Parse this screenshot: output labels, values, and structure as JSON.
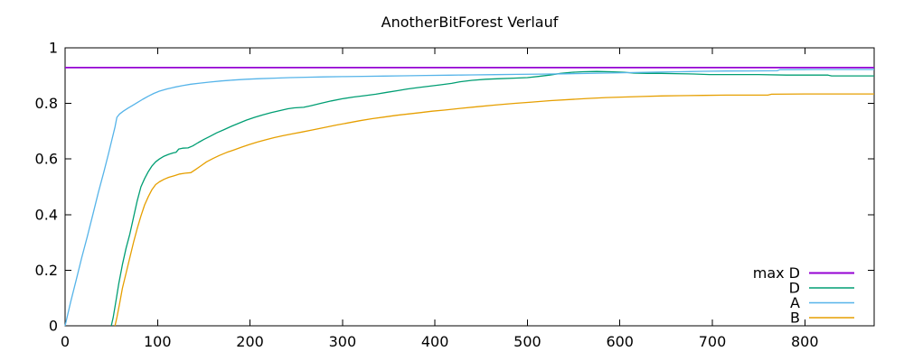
{
  "chart_data": {
    "type": "line",
    "title": "AnotherBitForest Verlauf",
    "xlabel": "",
    "ylabel": "",
    "xlim": [
      0,
      875
    ],
    "ylim": [
      0,
      1
    ],
    "grid": false,
    "background": "#ffffff",
    "axis_color": "#000000",
    "legend_position": "bottom-right-inside",
    "x_ticks": [
      {
        "value": 0,
        "label": "0"
      },
      {
        "value": 100,
        "label": "100"
      },
      {
        "value": 200,
        "label": "200"
      },
      {
        "value": 300,
        "label": "300"
      },
      {
        "value": 400,
        "label": "400"
      },
      {
        "value": 500,
        "label": "500"
      },
      {
        "value": 600,
        "label": "600"
      },
      {
        "value": 700,
        "label": "700"
      },
      {
        "value": 800,
        "label": "800"
      }
    ],
    "y_ticks": [
      {
        "value": 0,
        "label": "0"
      },
      {
        "value": 0.2,
        "label": "0.2"
      },
      {
        "value": 0.4,
        "label": "0.4"
      },
      {
        "value": 0.6,
        "label": "0.6"
      },
      {
        "value": 0.8,
        "label": "0.8"
      },
      {
        "value": 1,
        "label": "1"
      }
    ],
    "series": [
      {
        "name": "max D",
        "color": "#9400D3",
        "width": 1.8,
        "points": [
          [
            0,
            0.929
          ],
          [
            875,
            0.929
          ]
        ]
      },
      {
        "name": "D",
        "color": "#009E73",
        "width": 1.3,
        "points": [
          [
            50,
            0
          ],
          [
            52,
            0.03
          ],
          [
            55,
            0.09
          ],
          [
            58,
            0.15
          ],
          [
            62,
            0.22
          ],
          [
            66,
            0.28
          ],
          [
            70,
            0.33
          ],
          [
            74,
            0.39
          ],
          [
            78,
            0.45
          ],
          [
            82,
            0.5
          ],
          [
            86,
            0.53
          ],
          [
            90,
            0.555
          ],
          [
            94,
            0.575
          ],
          [
            98,
            0.59
          ],
          [
            102,
            0.6
          ],
          [
            107,
            0.61
          ],
          [
            112,
            0.617
          ],
          [
            117,
            0.622
          ],
          [
            120,
            0.624
          ],
          [
            123,
            0.636
          ],
          [
            127,
            0.639
          ],
          [
            133,
            0.64
          ],
          [
            138,
            0.647
          ],
          [
            144,
            0.659
          ],
          [
            150,
            0.67
          ],
          [
            157,
            0.682
          ],
          [
            164,
            0.694
          ],
          [
            172,
            0.706
          ],
          [
            180,
            0.718
          ],
          [
            188,
            0.729
          ],
          [
            196,
            0.74
          ],
          [
            205,
            0.75
          ],
          [
            214,
            0.759
          ],
          [
            223,
            0.767
          ],
          [
            232,
            0.774
          ],
          [
            241,
            0.781
          ],
          [
            248,
            0.784
          ],
          [
            258,
            0.786
          ],
          [
            266,
            0.792
          ],
          [
            276,
            0.8
          ],
          [
            288,
            0.809
          ],
          [
            300,
            0.817
          ],
          [
            312,
            0.823
          ],
          [
            324,
            0.828
          ],
          [
            336,
            0.833
          ],
          [
            348,
            0.84
          ],
          [
            360,
            0.846
          ],
          [
            370,
            0.852
          ],
          [
            382,
            0.857
          ],
          [
            394,
            0.862
          ],
          [
            406,
            0.867
          ],
          [
            418,
            0.872
          ],
          [
            427,
            0.878
          ],
          [
            440,
            0.883
          ],
          [
            455,
            0.887
          ],
          [
            470,
            0.889
          ],
          [
            485,
            0.891
          ],
          [
            500,
            0.893
          ],
          [
            512,
            0.897
          ],
          [
            524,
            0.902
          ],
          [
            536,
            0.908
          ],
          [
            548,
            0.912
          ],
          [
            560,
            0.914
          ],
          [
            575,
            0.915
          ],
          [
            590,
            0.914
          ],
          [
            605,
            0.912
          ],
          [
            615,
            0.909
          ],
          [
            630,
            0.908
          ],
          [
            645,
            0.908
          ],
          [
            660,
            0.907
          ],
          [
            680,
            0.906
          ],
          [
            697,
            0.904
          ],
          [
            720,
            0.904
          ],
          [
            750,
            0.904
          ],
          [
            780,
            0.902
          ],
          [
            825,
            0.902
          ],
          [
            829,
            0.899
          ],
          [
            875,
            0.899
          ]
        ]
      },
      {
        "name": "A",
        "color": "#56B4E9",
        "width": 1.3,
        "points": [
          [
            0,
            0
          ],
          [
            6,
            0.085
          ],
          [
            12,
            0.165
          ],
          [
            18,
            0.245
          ],
          [
            24,
            0.32
          ],
          [
            30,
            0.4
          ],
          [
            36,
            0.48
          ],
          [
            42,
            0.555
          ],
          [
            47,
            0.62
          ],
          [
            51,
            0.675
          ],
          [
            54,
            0.715
          ],
          [
            56,
            0.75
          ],
          [
            59,
            0.762
          ],
          [
            63,
            0.772
          ],
          [
            68,
            0.783
          ],
          [
            73,
            0.793
          ],
          [
            78,
            0.803
          ],
          [
            84,
            0.815
          ],
          [
            90,
            0.826
          ],
          [
            96,
            0.836
          ],
          [
            102,
            0.844
          ],
          [
            110,
            0.852
          ],
          [
            118,
            0.858
          ],
          [
            127,
            0.864
          ],
          [
            136,
            0.869
          ],
          [
            146,
            0.873
          ],
          [
            157,
            0.877
          ],
          [
            169,
            0.881
          ],
          [
            182,
            0.884
          ],
          [
            196,
            0.887
          ],
          [
            210,
            0.889
          ],
          [
            226,
            0.891
          ],
          [
            243,
            0.893
          ],
          [
            260,
            0.894
          ],
          [
            280,
            0.8955
          ],
          [
            300,
            0.8965
          ],
          [
            322,
            0.8975
          ],
          [
            344,
            0.8985
          ],
          [
            366,
            0.8995
          ],
          [
            390,
            0.9005
          ],
          [
            415,
            0.9015
          ],
          [
            440,
            0.9025
          ],
          [
            465,
            0.9035
          ],
          [
            490,
            0.9045
          ],
          [
            515,
            0.9055
          ],
          [
            540,
            0.9065
          ],
          [
            565,
            0.908
          ],
          [
            590,
            0.9095
          ],
          [
            615,
            0.911
          ],
          [
            640,
            0.9125
          ],
          [
            665,
            0.914
          ],
          [
            690,
            0.9155
          ],
          [
            715,
            0.9165
          ],
          [
            740,
            0.917
          ],
          [
            770,
            0.9175
          ],
          [
            773,
            0.9215
          ],
          [
            810,
            0.922
          ],
          [
            875,
            0.922
          ]
        ]
      },
      {
        "name": "B",
        "color": "#E69F00",
        "width": 1.3,
        "points": [
          [
            54,
            0
          ],
          [
            56,
            0.03
          ],
          [
            59,
            0.08
          ],
          [
            62,
            0.135
          ],
          [
            66,
            0.19
          ],
          [
            70,
            0.245
          ],
          [
            74,
            0.3
          ],
          [
            78,
            0.35
          ],
          [
            82,
            0.395
          ],
          [
            86,
            0.435
          ],
          [
            90,
            0.465
          ],
          [
            94,
            0.49
          ],
          [
            98,
            0.508
          ],
          [
            102,
            0.518
          ],
          [
            107,
            0.527
          ],
          [
            112,
            0.534
          ],
          [
            118,
            0.54
          ],
          [
            124,
            0.546
          ],
          [
            130,
            0.549
          ],
          [
            136,
            0.551
          ],
          [
            141,
            0.562
          ],
          [
            147,
            0.576
          ],
          [
            153,
            0.59
          ],
          [
            160,
            0.602
          ],
          [
            167,
            0.613
          ],
          [
            175,
            0.624
          ],
          [
            183,
            0.633
          ],
          [
            191,
            0.643
          ],
          [
            199,
            0.652
          ],
          [
            208,
            0.661
          ],
          [
            217,
            0.669
          ],
          [
            226,
            0.677
          ],
          [
            236,
            0.684
          ],
          [
            246,
            0.691
          ],
          [
            256,
            0.697
          ],
          [
            268,
            0.705
          ],
          [
            280,
            0.713
          ],
          [
            293,
            0.722
          ],
          [
            306,
            0.73
          ],
          [
            319,
            0.738
          ],
          [
            332,
            0.745
          ],
          [
            345,
            0.751
          ],
          [
            358,
            0.757
          ],
          [
            371,
            0.762
          ],
          [
            384,
            0.767
          ],
          [
            397,
            0.772
          ],
          [
            410,
            0.776
          ],
          [
            427,
            0.782
          ],
          [
            445,
            0.788
          ],
          [
            465,
            0.794
          ],
          [
            485,
            0.8
          ],
          [
            505,
            0.805
          ],
          [
            525,
            0.81
          ],
          [
            545,
            0.814
          ],
          [
            565,
            0.818
          ],
          [
            585,
            0.821
          ],
          [
            605,
            0.823
          ],
          [
            625,
            0.825
          ],
          [
            645,
            0.827
          ],
          [
            665,
            0.828
          ],
          [
            690,
            0.829
          ],
          [
            715,
            0.83
          ],
          [
            740,
            0.83
          ],
          [
            760,
            0.83
          ],
          [
            764,
            0.833
          ],
          [
            800,
            0.834
          ],
          [
            875,
            0.834
          ]
        ]
      }
    ]
  }
}
